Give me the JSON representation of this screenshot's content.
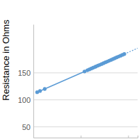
{
  "chart_data": {
    "type": "scatter",
    "y_label": "Resistance in Ohms",
    "x": [
      4,
      7,
      12,
      54,
      57,
      59,
      61,
      63,
      65,
      66,
      68,
      70,
      72,
      74,
      76,
      78,
      80,
      82,
      84,
      86,
      88,
      90,
      92,
      94,
      96
    ],
    "values": [
      114.1,
      116.4,
      120.2,
      152.6,
      154.9,
      156.4,
      158,
      159.5,
      161,
      161.8,
      163.4,
      164.9,
      166.4,
      168,
      169.5,
      171,
      172.6,
      174.1,
      175.7,
      177.2,
      178.8,
      180.3,
      181.8,
      183.4,
      184.9
    ],
    "trendline": {
      "x": [
        4,
        96
      ],
      "values": [
        114.1,
        184.9
      ]
    },
    "forecast": {
      "x": [
        96,
        110
      ],
      "values": [
        184.9,
        195.7
      ]
    },
    "color": "#5b9bd5",
    "marker": "circle",
    "xlim": [
      0,
      110
    ],
    "xticks": [
      0,
      50,
      100
    ],
    "ylim": [
      30,
      240
    ],
    "yticks": [
      50,
      100,
      150
    ],
    "grid": true,
    "tick_labels": "y"
  }
}
